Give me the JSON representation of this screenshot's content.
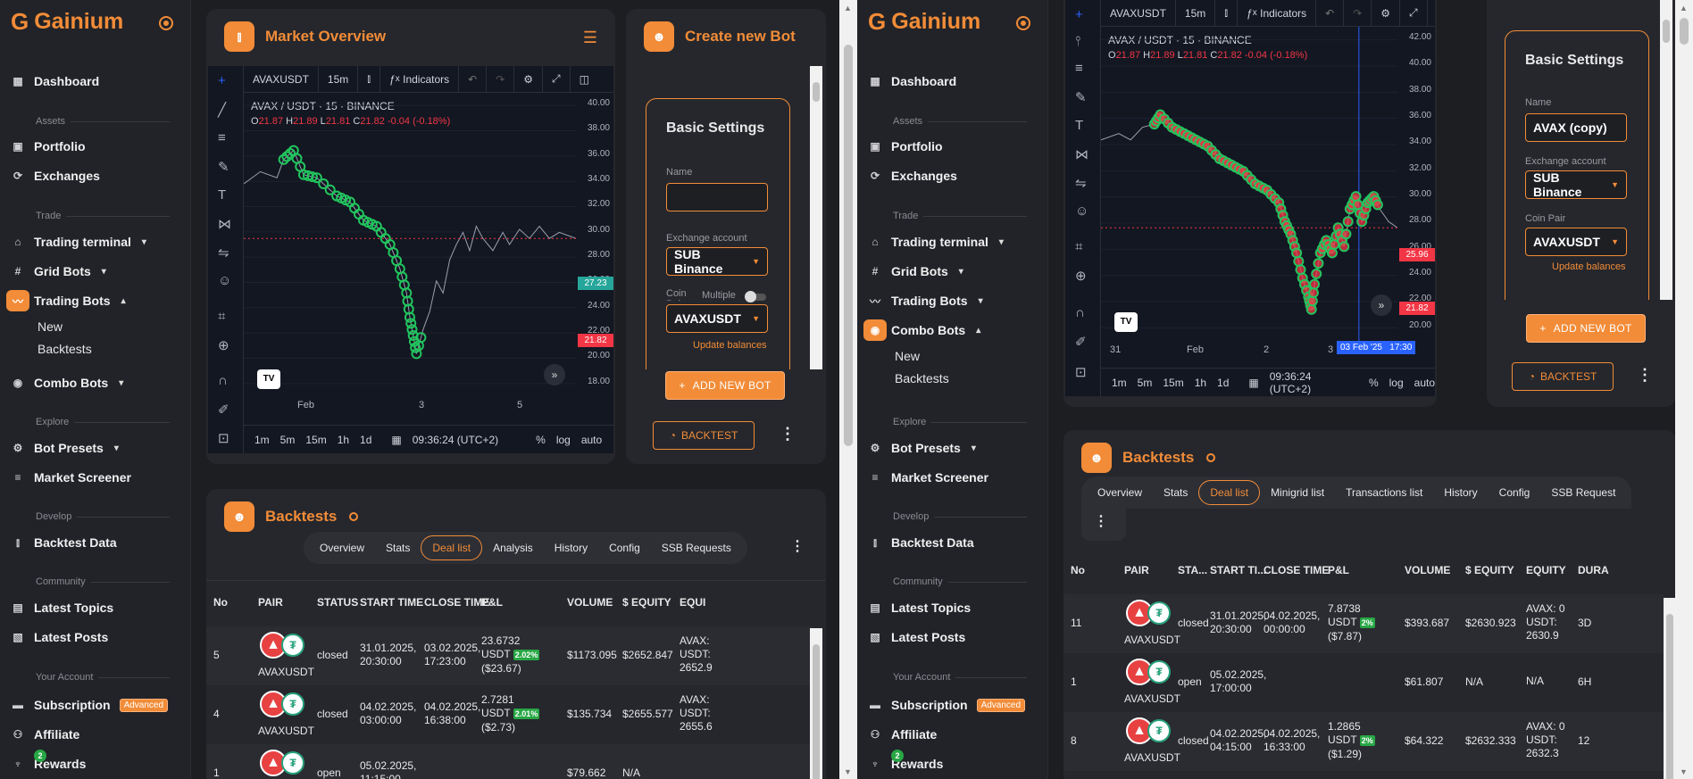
{
  "app": {
    "name": "Gainium",
    "logo_mark": "G"
  },
  "sidebar": {
    "dashboard": "Dashboard",
    "sec_assets": "Assets",
    "portfolio": "Portfolio",
    "exchanges": "Exchanges",
    "sec_trade": "Trade",
    "trading_terminal": "Trading terminal",
    "grid_bots": "Grid Bots",
    "trading_bots": "Trading Bots",
    "combo_bots": "Combo Bots",
    "sub_new": "New",
    "sub_backtests": "Backtests",
    "sec_explore": "Explore",
    "bot_presets": "Bot Presets",
    "market_screener": "Market Screener",
    "sec_develop": "Develop",
    "backtest_data": "Backtest Data",
    "sec_community": "Community",
    "latest_topics": "Latest Topics",
    "latest_posts": "Latest Posts",
    "sec_account": "Your Account",
    "subscription": "Subscription",
    "subscription_badge": "Advanced",
    "affiliate": "Affiliate",
    "rewards": "Rewards",
    "rewards_count": "2"
  },
  "left": {
    "market_title": "Market Overview",
    "create_title": "Create new Bot",
    "chart": {
      "symbol": "AVAXUSDT",
      "interval": "15m",
      "indicators": "Indicators",
      "legend": "AVAX / USDT · 15 · BINANCE",
      "o": "21.87",
      "h": "21.89",
      "l": "21.81",
      "c": "21.82",
      "chg": "-0.04 (-0.18%)",
      "yticks": [
        "40.00",
        "38.00",
        "36.00",
        "34.00",
        "32.00",
        "30.00",
        "28.00",
        "26.00",
        "24.00",
        "22.00",
        "20.00",
        "18.00"
      ],
      "last_green": "27.23",
      "last_red": "21.82",
      "xticks": [
        "Feb",
        "3",
        "5"
      ],
      "ranges": [
        "1m",
        "5m",
        "15m",
        "1h",
        "1d"
      ],
      "time": "09:36:24 (UTC+2)",
      "pct": "%",
      "log": "log",
      "auto": "auto"
    },
    "form": {
      "basic_settings": "Basic Settings",
      "name_label": "Name",
      "name_value": "",
      "exchange_label": "Exchange account",
      "exchange_value": "SUB Binance",
      "coin_label": "Coin Pair",
      "multiple": "Multiple",
      "coin_value": "AVAXUSDT",
      "update_balances": "Update balances",
      "add_new_bot": "ADD NEW BOT",
      "backtest": "BACKTEST"
    },
    "backtests": {
      "title": "Backtests",
      "tabs": [
        "Overview",
        "Stats",
        "Deal list",
        "Analysis",
        "History",
        "Config",
        "SSB Requests"
      ],
      "headers": [
        "No",
        "PAIR",
        "STATUS",
        "START TIME",
        "CLOSE TIME",
        "P&L",
        "VOLUME",
        "$ EQUITY",
        "EQUI"
      ],
      "rows": [
        {
          "no": "5",
          "pair": "AVAXUSDT",
          "status": "closed",
          "start": [
            "31.01.2025,",
            "20:30:00"
          ],
          "close": [
            "03.02.2025,",
            "17:23:00"
          ],
          "pnl": [
            "23.6732",
            "USDT",
            "($23.67)"
          ],
          "pct": "2.02%",
          "volume": "$1173.095",
          "equity": "$2652.847",
          "eq2": [
            "AVAX:",
            "USDT:",
            "2652.9"
          ]
        },
        {
          "no": "4",
          "pair": "AVAXUSDT",
          "status": "closed",
          "start": [
            "04.02.2025,",
            "03:00:00"
          ],
          "close": [
            "04.02.2025,",
            "16:38:00"
          ],
          "pnl": [
            "2.7281",
            "USDT",
            "($2.73)"
          ],
          "pct": "2.01%",
          "volume": "$135.734",
          "equity": "$2655.577",
          "eq2": [
            "AVAX:",
            "USDT:",
            "2655.6"
          ]
        },
        {
          "no": "1",
          "pair": "",
          "status": "open",
          "start": [
            "05.02.2025,",
            "11:15:00"
          ],
          "close": [
            "",
            ""
          ],
          "pnl": [
            "",
            "",
            ""
          ],
          "pct": "",
          "volume": "$79.662",
          "equity": "N/A",
          "eq2": [
            "",
            "",
            ""
          ]
        }
      ]
    }
  },
  "right": {
    "chart": {
      "symbol": "AVAXUSDT",
      "interval": "15m",
      "indicators": "Indicators",
      "legend": "AVAX / USDT · 15 · BINANCE",
      "o": "21.87",
      "h": "21.89",
      "l": "21.81",
      "c": "21.82",
      "chg": "-0.04 (-0.18%)",
      "yticks": [
        "42.00",
        "40.00",
        "38.00",
        "36.00",
        "34.00",
        "32.00",
        "30.00",
        "28.00",
        "26.00",
        "24.00",
        "22.00",
        "20.00"
      ],
      "last_red": "25.96",
      "last_red2": "21.82",
      "xticks": [
        "31",
        "Feb",
        "2",
        "3",
        "03 Feb '25   17:30"
      ],
      "ranges": [
        "1m",
        "5m",
        "15m",
        "1h",
        "1d"
      ],
      "time": "09:36:24 (UTC+2)",
      "pct": "%",
      "log": "log",
      "auto": "auto"
    },
    "form": {
      "basic_settings": "Basic Settings",
      "name_label": "Name",
      "name_value": "AVAX (copy)",
      "exchange_label": "Exchange account",
      "exchange_value": "SUB Binance",
      "coin_label": "Coin Pair",
      "coin_value": "AVAXUSDT",
      "update_balances": "Update balances",
      "add_new_bot": "ADD NEW BOT",
      "backtest": "BACKTEST"
    },
    "backtests": {
      "title": "Backtests",
      "tabs": [
        "Overview",
        "Stats",
        "Deal list",
        "Minigrid list",
        "Transactions list",
        "History",
        "Config",
        "SSB Request"
      ],
      "headers": [
        "No",
        "PAIR",
        "STA...",
        "START TI...",
        "CLOSE TIME",
        "P&L",
        "VOLUME",
        "$ EQUITY",
        "EQUITY",
        "DURA"
      ],
      "rows": [
        {
          "no": "11",
          "pair": "AVAXUSDT",
          "status": "closed",
          "start": [
            "31.01.2025,",
            "20:30:00"
          ],
          "close": [
            "04.02.2025,",
            "00:00:00"
          ],
          "pnl": [
            "7.8738",
            "USDT",
            "($7.87)"
          ],
          "pct": "2%",
          "volume": "$393.687",
          "equity": "$2630.923",
          "eq2": [
            "AVAX: 0",
            "USDT:",
            "2630.9"
          ],
          "dur": "3D"
        },
        {
          "no": "1",
          "pair": "AVAXUSDT",
          "status": "open",
          "start": [
            "05.02.2025,",
            "17:00:00"
          ],
          "close": [
            "",
            ""
          ],
          "pnl": [
            "",
            "",
            ""
          ],
          "pct": "",
          "volume": "$61.807",
          "equity": "N/A",
          "eq2": [
            "",
            "N/A",
            ""
          ],
          "dur": "6H"
        },
        {
          "no": "8",
          "pair": "AVAXUSDT",
          "status": "closed",
          "start": [
            "04.02.2025,",
            "04:15:00"
          ],
          "close": [
            "04.02.2025,",
            "16:33:00"
          ],
          "pnl": [
            "1.2865",
            "USDT",
            "($1.29)"
          ],
          "pct": "2%",
          "volume": "$64.322",
          "equity": "$2632.333",
          "eq2": [
            "AVAX: 0",
            "USDT:",
            "2632.3"
          ],
          "dur": "12"
        }
      ]
    }
  },
  "colors": {
    "accent": "#f28c38",
    "green": "#28a745",
    "red": "#f23645",
    "chart_bg": "#131722"
  }
}
